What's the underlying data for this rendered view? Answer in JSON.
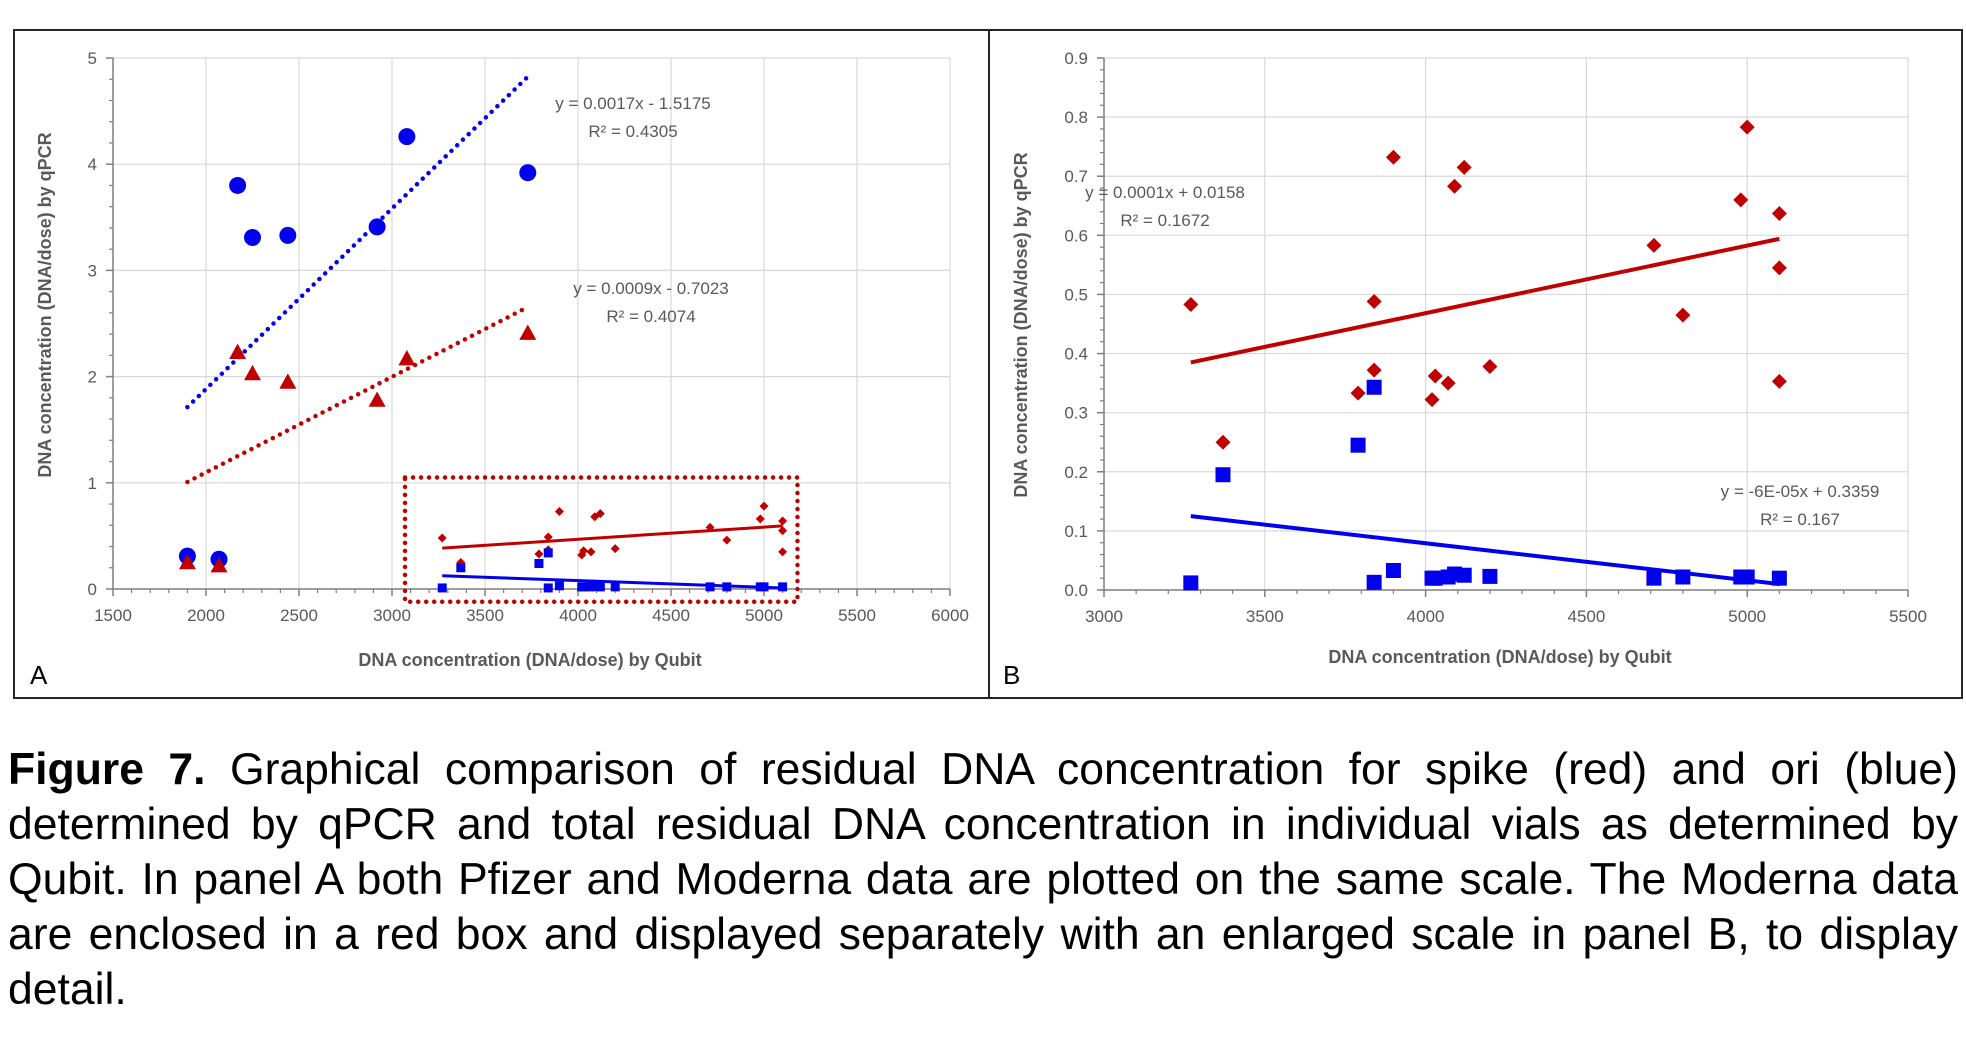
{
  "figure": {
    "caption_label": "Figure 7.",
    "caption_text": "Graphical comparison of residual DNA concentration for spike (red) and ori (blue) determined by qPCR and total residual DNA concentration in individual vials as determined by Qubit. In panel A both Pfizer and Moderna data are plotted on the same scale. The Moderna data are enclosed in a red box and displayed separately with an enlarged scale in panel B, to display detail."
  },
  "colors": {
    "red": "#c00000",
    "blue": "#0000ee",
    "grid": "#d9d9d9",
    "axis": "#7f7f7f",
    "label": "#595959"
  },
  "chart_data": [
    {
      "panel": "A",
      "type": "scatter",
      "xlabel": "DNA concentration (DNA/dose) by Qubit",
      "ylabel": "DNA concentration (DNA/dose) by qPCR",
      "xlim": [
        1500,
        6000
      ],
      "ylim": [
        0,
        5
      ],
      "xticks": [
        1500,
        2000,
        2500,
        3000,
        3500,
        4000,
        4500,
        5000,
        5500,
        6000
      ],
      "yticks": [
        0,
        1,
        2,
        3,
        4,
        5
      ],
      "grid": true,
      "series": [
        {
          "marker": "circle",
          "color": "blue",
          "x": [
            1900,
            2070,
            2170,
            2250,
            2440,
            2920,
            3080,
            3730
          ],
          "y": [
            0.31,
            0.28,
            3.8,
            3.31,
            3.33,
            3.41,
            4.26,
            3.92
          ]
        },
        {
          "marker": "triangle",
          "color": "red",
          "x": [
            1900,
            2070,
            2170,
            2250,
            2440,
            2920,
            3080,
            3730
          ],
          "y": [
            0.25,
            0.22,
            2.23,
            2.03,
            1.95,
            1.78,
            2.17,
            2.41
          ]
        },
        {
          "marker": "diamond-small",
          "color": "red",
          "x": [
            3270,
            3370,
            3790,
            3840,
            3840,
            3900,
            4020,
            4030,
            4070,
            4090,
            4120,
            4200,
            4710,
            4800,
            4980,
            5000,
            5100,
            5100,
            5100
          ],
          "y": [
            0.48,
            0.25,
            0.33,
            0.37,
            0.49,
            0.73,
            0.32,
            0.36,
            0.35,
            0.68,
            0.71,
            0.38,
            0.58,
            0.46,
            0.66,
            0.78,
            0.64,
            0.55,
            0.35
          ]
        },
        {
          "marker": "square-small",
          "color": "blue",
          "x": [
            3270,
            3370,
            3790,
            3840,
            3840,
            3900,
            4020,
            4030,
            4070,
            4090,
            4120,
            4200,
            4710,
            4800,
            4980,
            5000,
            5100
          ],
          "y": [
            0.01,
            0.2,
            0.24,
            0.34,
            0.01,
            0.03,
            0.02,
            0.02,
            0.02,
            0.03,
            0.02,
            0.02,
            0.02,
            0.02,
            0.02,
            0.02,
            0.02
          ]
        }
      ],
      "trendlines": [
        {
          "color": "blue",
          "style": "dotted",
          "x": [
            1900,
            3730
          ],
          "slope": 0.0017,
          "intercept": -1.5175,
          "equation": "y = 0.0017x - 1.5175",
          "r2": "R² = 0.4305"
        },
        {
          "color": "red",
          "style": "dotted",
          "x": [
            1900,
            3730
          ],
          "slope": 0.0009,
          "intercept": -0.7023,
          "equation": "y = 0.0009x - 0.7023",
          "r2": "R² = 0.4074"
        },
        {
          "color": "red",
          "style": "solid",
          "x": [
            3270,
            5100
          ],
          "y": [
            0.385,
            0.594
          ]
        },
        {
          "color": "blue",
          "style": "solid",
          "x": [
            3270,
            5100
          ],
          "y": [
            0.125,
            0.01
          ]
        }
      ],
      "highlight_box": {
        "x": [
          3070,
          5180
        ],
        "y": [
          -0.12,
          1.05
        ],
        "color": "red",
        "style": "dotted"
      },
      "panel_label": "A"
    },
    {
      "panel": "B",
      "type": "scatter",
      "xlabel": "DNA concentration (DNA/dose) by Qubit",
      "ylabel": "DNA concentration (DNA/dose) by qPCR",
      "xlim": [
        3000,
        5500
      ],
      "ylim": [
        0,
        0.9
      ],
      "xticks": [
        3000,
        3500,
        4000,
        4500,
        5000,
        5500
      ],
      "yticks": [
        0.0,
        0.1,
        0.2,
        0.3,
        0.4,
        0.5,
        0.6,
        0.7,
        0.8,
        0.9
      ],
      "grid": true,
      "series": [
        {
          "marker": "diamond",
          "color": "red",
          "x": [
            3270,
            3370,
            3790,
            3840,
            3840,
            3900,
            4020,
            4030,
            4070,
            4090,
            4120,
            4200,
            4710,
            4800,
            4980,
            5000,
            5100,
            5100,
            5100
          ],
          "y": [
            0.483,
            0.25,
            0.333,
            0.372,
            0.488,
            0.732,
            0.322,
            0.362,
            0.35,
            0.683,
            0.715,
            0.378,
            0.583,
            0.465,
            0.66,
            0.783,
            0.637,
            0.545,
            0.353
          ]
        },
        {
          "marker": "square",
          "color": "blue",
          "x": [
            3270,
            3370,
            3790,
            3840,
            3840,
            3900,
            4020,
            4030,
            4070,
            4090,
            4120,
            4200,
            4710,
            4800,
            4980,
            5000,
            5100
          ],
          "y": [
            0.012,
            0.195,
            0.245,
            0.343,
            0.013,
            0.033,
            0.02,
            0.02,
            0.022,
            0.027,
            0.025,
            0.023,
            0.02,
            0.022,
            0.022,
            0.022,
            0.02
          ]
        }
      ],
      "trendlines": [
        {
          "color": "red",
          "style": "solid",
          "x": [
            3270,
            5100
          ],
          "slope": 0.0001,
          "intercept": 0.0158,
          "y": [
            0.385,
            0.594
          ],
          "equation": "y = 0.0001x + 0.0158",
          "r2": "R² = 0.1672"
        },
        {
          "color": "blue",
          "style": "solid",
          "x": [
            3270,
            5100
          ],
          "slope": -6e-05,
          "intercept": 0.3359,
          "y": [
            0.125,
            0.01
          ],
          "equation": "y = -6E-05x + 0.3359",
          "r2": "R² = 0.167"
        }
      ],
      "panel_label": "B"
    }
  ]
}
